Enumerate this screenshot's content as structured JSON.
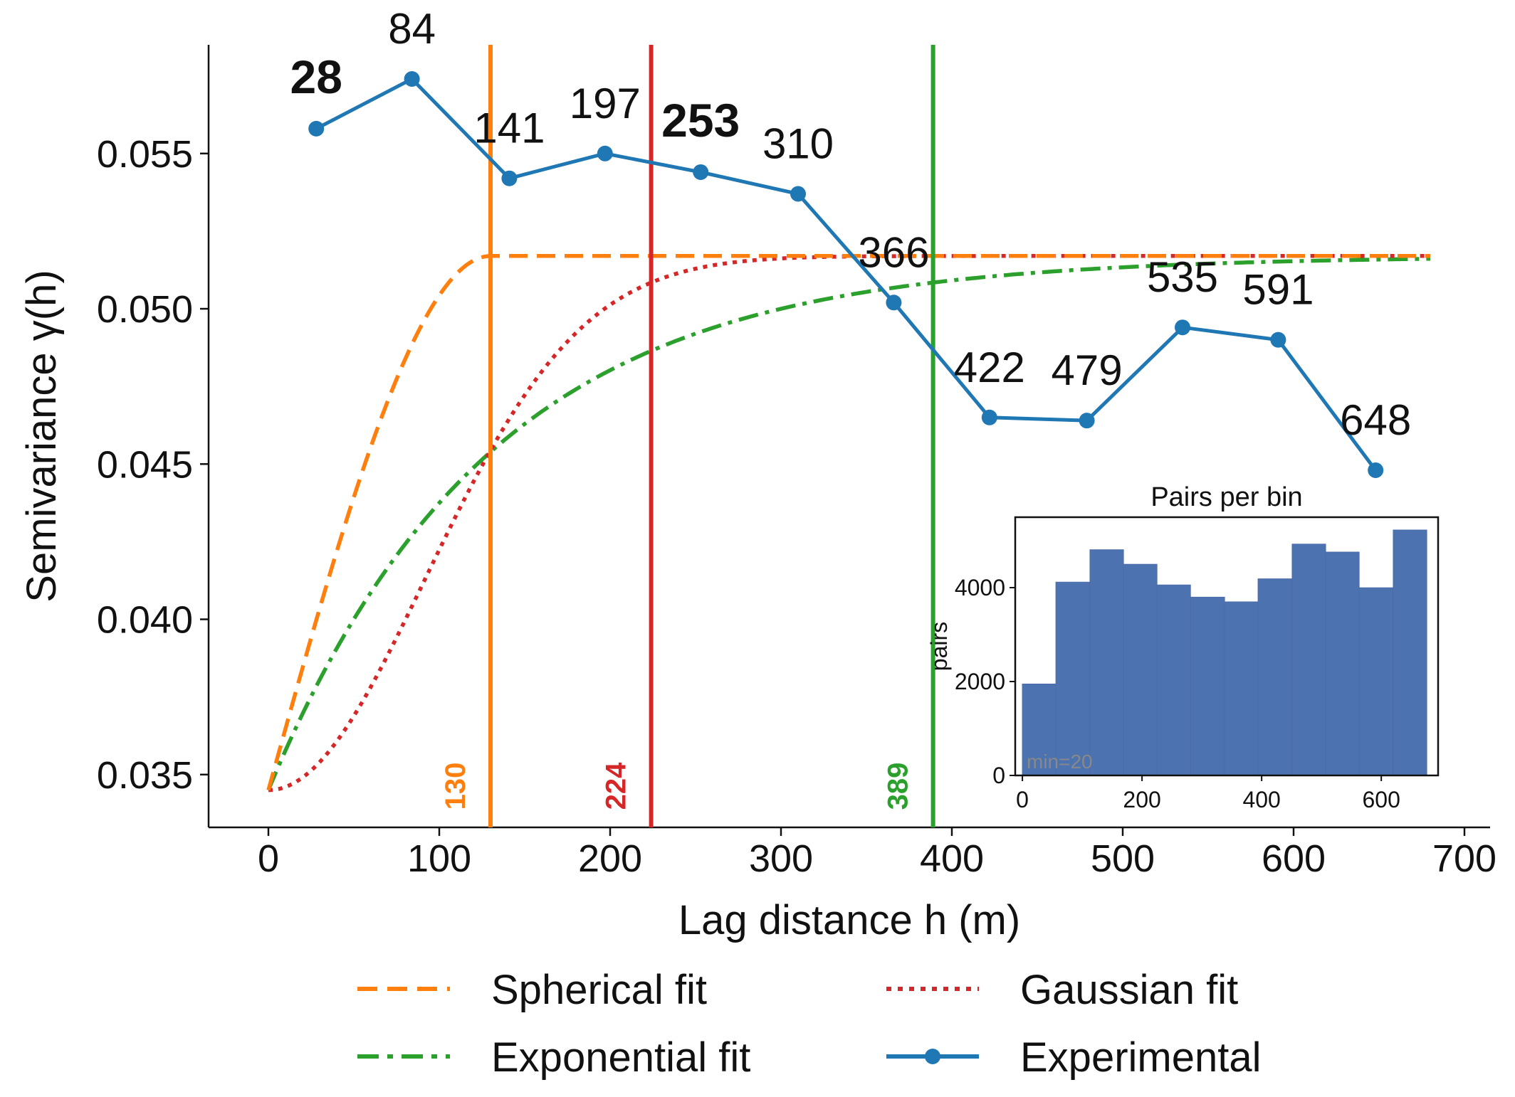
{
  "chart_data": {
    "type": "line",
    "xlabel": "Lag distance h (m)",
    "ylabel": "Semivariance γ(h)",
    "xlim": [
      -35,
      715
    ],
    "ylim": [
      0.0333,
      0.0585
    ],
    "xticks": [
      0,
      100,
      200,
      300,
      400,
      500,
      600,
      700
    ],
    "xtick_labels": [
      "0",
      "100",
      "200",
      "300",
      "400",
      "500",
      "600",
      "700"
    ],
    "yticks": [
      0.035,
      0.04,
      0.045,
      0.05,
      0.055
    ],
    "ytick_labels": [
      "0.035",
      "0.040",
      "0.045",
      "0.050",
      "0.055"
    ],
    "grid": false,
    "experimental": {
      "name": "Experimental",
      "color": "#1f77b4",
      "points": [
        {
          "x": 28,
          "y": 0.0558,
          "label": "28",
          "bold": true
        },
        {
          "x": 84,
          "y": 0.0574,
          "label": "84",
          "bold": false
        },
        {
          "x": 141,
          "y": 0.0542,
          "label": "141",
          "bold": false
        },
        {
          "x": 197,
          "y": 0.055,
          "label": "197",
          "bold": false
        },
        {
          "x": 253,
          "y": 0.0544,
          "label": "253",
          "bold": true
        },
        {
          "x": 310,
          "y": 0.0537,
          "label": "310",
          "bold": false
        },
        {
          "x": 366,
          "y": 0.0502,
          "label": "366",
          "bold": false
        },
        {
          "x": 422,
          "y": 0.0465,
          "label": "422",
          "bold": false
        },
        {
          "x": 479,
          "y": 0.0464,
          "label": "479",
          "bold": false
        },
        {
          "x": 535,
          "y": 0.0494,
          "label": "535",
          "bold": false
        },
        {
          "x": 591,
          "y": 0.049,
          "label": "591",
          "bold": false
        },
        {
          "x": 648,
          "y": 0.0448,
          "label": "648",
          "bold": false
        }
      ]
    },
    "models": {
      "nugget": 0.0345,
      "sill": 0.0517,
      "x_max": 680,
      "spherical": {
        "name": "Spherical fit",
        "range": 130,
        "color": "#ff7f0e",
        "dash": "dashed"
      },
      "gaussian": {
        "name": "Gaussian fit",
        "range": 224,
        "color": "#d62728",
        "dash": "dotted"
      },
      "exponential": {
        "name": "Exponential fit",
        "range": 389,
        "color": "#2ca02c",
        "dash": "dashdot"
      }
    },
    "range_lines": [
      {
        "x": 130,
        "label": "130",
        "color": "#ff7f0e"
      },
      {
        "x": 224,
        "label": "224",
        "color": "#d62728"
      },
      {
        "x": 389,
        "label": "389",
        "color": "#2ca02c"
      }
    ],
    "legend": {
      "placement": "bottom",
      "entries": [
        {
          "label": "Spherical fit",
          "color": "#ff7f0e",
          "style": "dashed"
        },
        {
          "label": "Gaussian fit",
          "color": "#d62728",
          "style": "dotted"
        },
        {
          "label": "Exponential fit",
          "color": "#2ca02c",
          "style": "dashdot"
        },
        {
          "label": "Experimental",
          "color": "#1f77b4",
          "style": "line-marker"
        }
      ]
    },
    "inset": {
      "type": "bar",
      "title": "Pairs per bin",
      "ylabel": "pairs",
      "placement": "lower-right",
      "color": "#4c72b0",
      "bin_width": 56.5,
      "bins": [
        {
          "center": 28,
          "value": 1950
        },
        {
          "center": 84,
          "value": 4120
        },
        {
          "center": 141,
          "value": 4810
        },
        {
          "center": 197,
          "value": 4500
        },
        {
          "center": 253,
          "value": 4060
        },
        {
          "center": 310,
          "value": 3800
        },
        {
          "center": 366,
          "value": 3700
        },
        {
          "center": 422,
          "value": 4190
        },
        {
          "center": 479,
          "value": 4930
        },
        {
          "center": 535,
          "value": 4760
        },
        {
          "center": 591,
          "value": 4000
        },
        {
          "center": 648,
          "value": 5230
        }
      ],
      "xlim": [
        -12,
        695
      ],
      "ylim": [
        0,
        5500
      ],
      "xticks": [
        0,
        200,
        400,
        600
      ],
      "xtick_labels": [
        "0",
        "200",
        "400",
        "600"
      ],
      "yticks": [
        0,
        2000,
        4000
      ],
      "ytick_labels": [
        "0",
        "2000",
        "4000"
      ],
      "annotation": "min=20",
      "annotation_color": "#888888"
    }
  }
}
